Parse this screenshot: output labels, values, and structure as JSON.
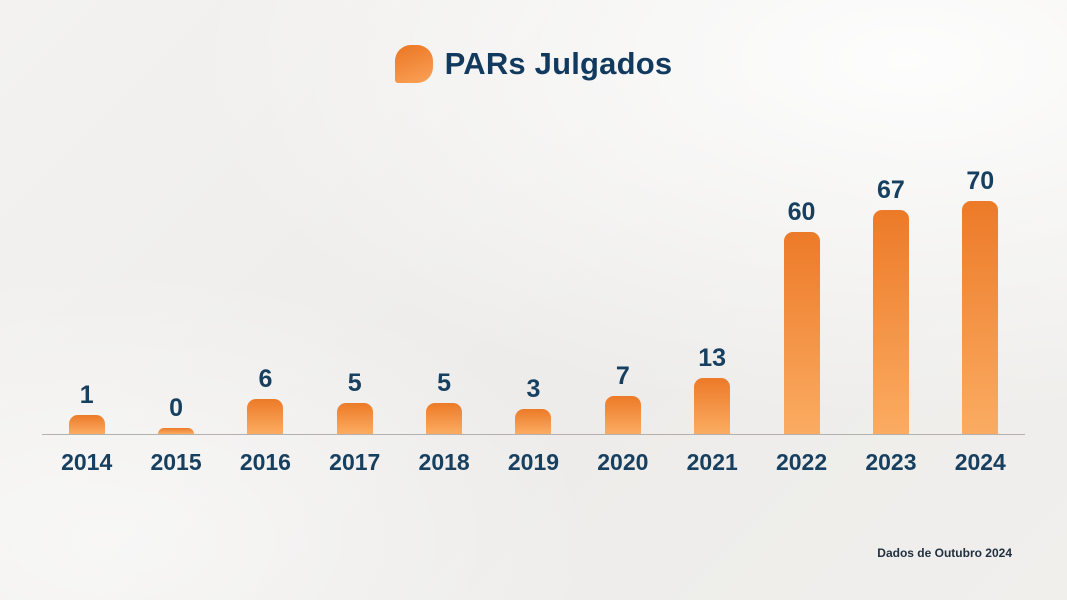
{
  "header": {
    "title": "PARs Julgados"
  },
  "footer": {
    "note": "Dados de Outubro 2024"
  },
  "chart_data": {
    "type": "bar",
    "title": "PARs Julgados",
    "categories": [
      "2014",
      "2015",
      "2016",
      "2017",
      "2018",
      "2019",
      "2020",
      "2021",
      "2022",
      "2023",
      "2024"
    ],
    "values": [
      1,
      0,
      6,
      5,
      5,
      3,
      7,
      13,
      60,
      67,
      70
    ],
    "xlabel": "",
    "ylabel": "",
    "ylim": [
      0,
      75
    ],
    "grid": false,
    "legend": "none",
    "data_labels": true,
    "bar_color_top": "#EC7A28",
    "bar_color_bottom": "#FBAC62",
    "label_color": "#173F5F",
    "axis_line_color": "#B4B1AC"
  }
}
